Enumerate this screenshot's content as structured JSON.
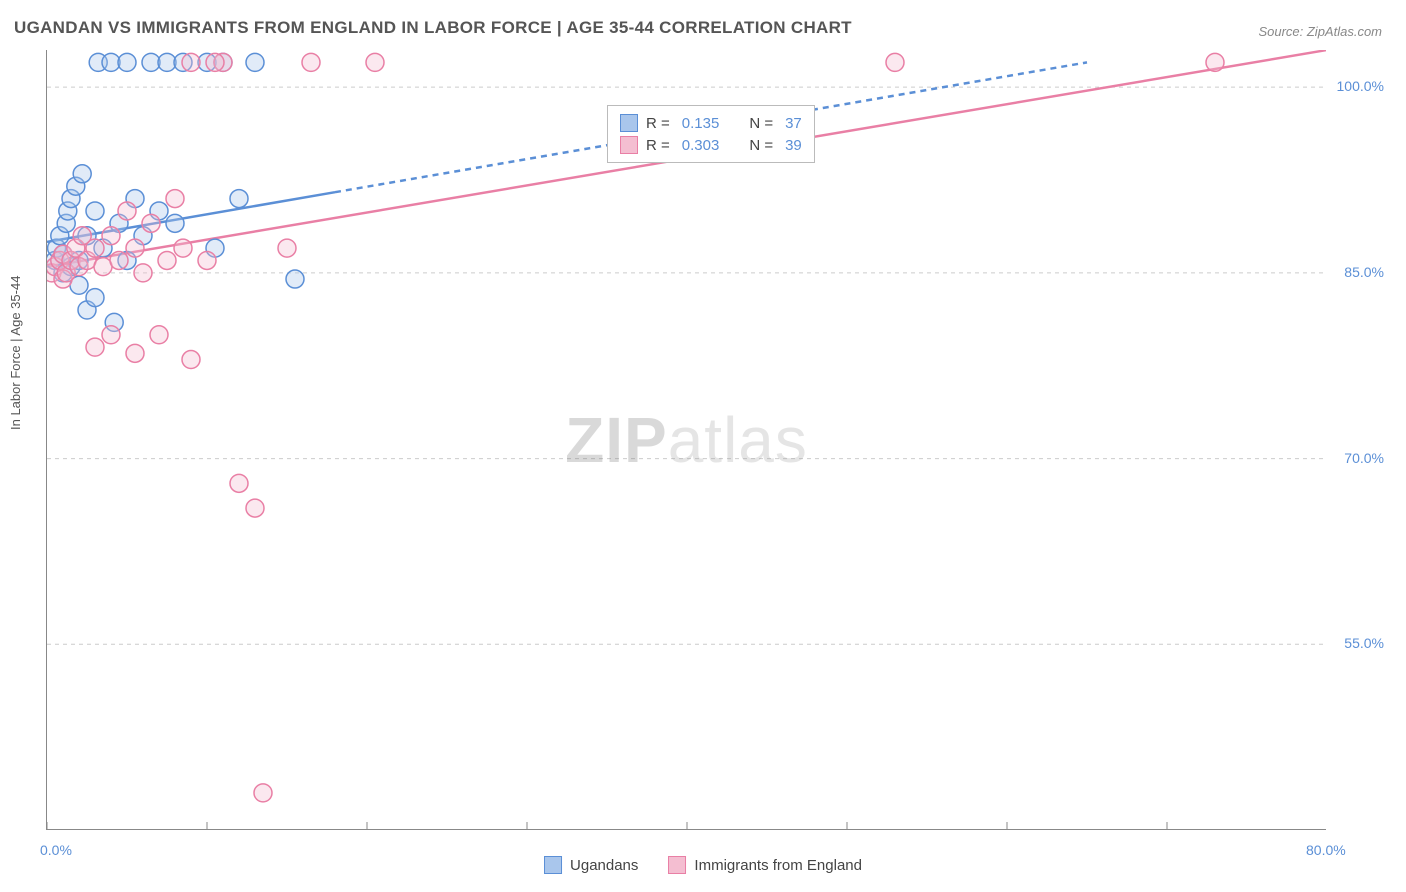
{
  "title": "UGANDAN VS IMMIGRANTS FROM ENGLAND IN LABOR FORCE | AGE 35-44 CORRELATION CHART",
  "source_label": "Source: ZipAtlas.com",
  "y_axis_label": "In Labor Force | Age 35-44",
  "watermark": {
    "bold": "ZIP",
    "light": "atlas"
  },
  "chart": {
    "type": "scatter_with_regression",
    "background_color": "#ffffff",
    "grid_color": "#cccccc",
    "grid_dash": "4,4",
    "axis_color": "#888888",
    "tick_color": "#888888",
    "label_color": "#5b8fd6",
    "title_color": "#555555",
    "title_fontsize": 17,
    "label_fontsize": 14,
    "axis_label_fontsize": 13,
    "marker_radius": 9,
    "marker_stroke_width": 1.5,
    "marker_fill_opacity": 0.35,
    "line_width": 2.5,
    "xlim": [
      0,
      80
    ],
    "ylim": [
      40,
      103
    ],
    "x_ticks": [
      0,
      10,
      20,
      30,
      40,
      50,
      60,
      70,
      80
    ],
    "x_tick_labels": [
      "0.0%",
      "",
      "",
      "",
      "",
      "",
      "",
      "",
      "80.0%"
    ],
    "y_ticks": [
      55,
      70,
      85,
      100
    ],
    "y_tick_labels": [
      "55.0%",
      "70.0%",
      "85.0%",
      "100.0%"
    ],
    "series": [
      {
        "id": "ugandans",
        "label": "Ugandans",
        "color_stroke": "#5b8fd6",
        "color_fill": "#a9c6ec",
        "R": "0.135",
        "N": "37",
        "points": [
          [
            0.5,
            86
          ],
          [
            0.6,
            87
          ],
          [
            0.8,
            88
          ],
          [
            1.0,
            85
          ],
          [
            1.0,
            86.5
          ],
          [
            1.2,
            89
          ],
          [
            1.3,
            90
          ],
          [
            1.5,
            91
          ],
          [
            1.5,
            85.5
          ],
          [
            1.8,
            92
          ],
          [
            2.0,
            86
          ],
          [
            2.0,
            84
          ],
          [
            2.2,
            93
          ],
          [
            2.5,
            82
          ],
          [
            2.5,
            88
          ],
          [
            3.0,
            90
          ],
          [
            3.0,
            83
          ],
          [
            3.2,
            102
          ],
          [
            3.5,
            87
          ],
          [
            4.0,
            102
          ],
          [
            4.2,
            81
          ],
          [
            4.5,
            89
          ],
          [
            5.0,
            102
          ],
          [
            5.0,
            86
          ],
          [
            5.5,
            91
          ],
          [
            6.0,
            88
          ],
          [
            6.5,
            102
          ],
          [
            7.0,
            90
          ],
          [
            7.5,
            102
          ],
          [
            8.0,
            89
          ],
          [
            8.5,
            102
          ],
          [
            10.0,
            102
          ],
          [
            10.5,
            87
          ],
          [
            11.0,
            102
          ],
          [
            12.0,
            91
          ],
          [
            13.0,
            102
          ],
          [
            15.5,
            84.5
          ]
        ],
        "regression": {
          "x1": 0,
          "y1": 87.5,
          "x2": 65,
          "y2": 102,
          "solid_until_x": 18
        }
      },
      {
        "id": "immigrants_england",
        "label": "Immigrants from England",
        "color_stroke": "#e97fa5",
        "color_fill": "#f4bed1",
        "R": "0.303",
        "N": "39",
        "points": [
          [
            0.3,
            85
          ],
          [
            0.5,
            85.5
          ],
          [
            0.8,
            86
          ],
          [
            1.0,
            84.5
          ],
          [
            1.0,
            86.5
          ],
          [
            1.2,
            85
          ],
          [
            1.5,
            86
          ],
          [
            1.8,
            87
          ],
          [
            2.0,
            85.5
          ],
          [
            2.2,
            88
          ],
          [
            2.5,
            86
          ],
          [
            3.0,
            87
          ],
          [
            3.0,
            79
          ],
          [
            3.5,
            85.5
          ],
          [
            4.0,
            88
          ],
          [
            4.0,
            80
          ],
          [
            4.5,
            86
          ],
          [
            5.0,
            90
          ],
          [
            5.5,
            87
          ],
          [
            5.5,
            78.5
          ],
          [
            6.0,
            85
          ],
          [
            6.5,
            89
          ],
          [
            7.0,
            80
          ],
          [
            7.5,
            86
          ],
          [
            8.0,
            91
          ],
          [
            8.5,
            87
          ],
          [
            9.0,
            102
          ],
          [
            9.0,
            78
          ],
          [
            10.0,
            86
          ],
          [
            11.0,
            102
          ],
          [
            12.0,
            68
          ],
          [
            13.0,
            66
          ],
          [
            13.5,
            43
          ],
          [
            15.0,
            87
          ],
          [
            16.5,
            102
          ],
          [
            20.5,
            102
          ],
          [
            53.0,
            102
          ],
          [
            73.0,
            102
          ],
          [
            10.5,
            102
          ]
        ],
        "regression": {
          "x1": 0,
          "y1": 85.5,
          "x2": 80,
          "y2": 103,
          "solid_until_x": 80
        }
      }
    ]
  },
  "legend_box": {
    "r_prefix": "R  =",
    "n_prefix": "N  ="
  },
  "bottom_legend": {
    "items": [
      "Ugandans",
      "Immigrants from England"
    ]
  }
}
